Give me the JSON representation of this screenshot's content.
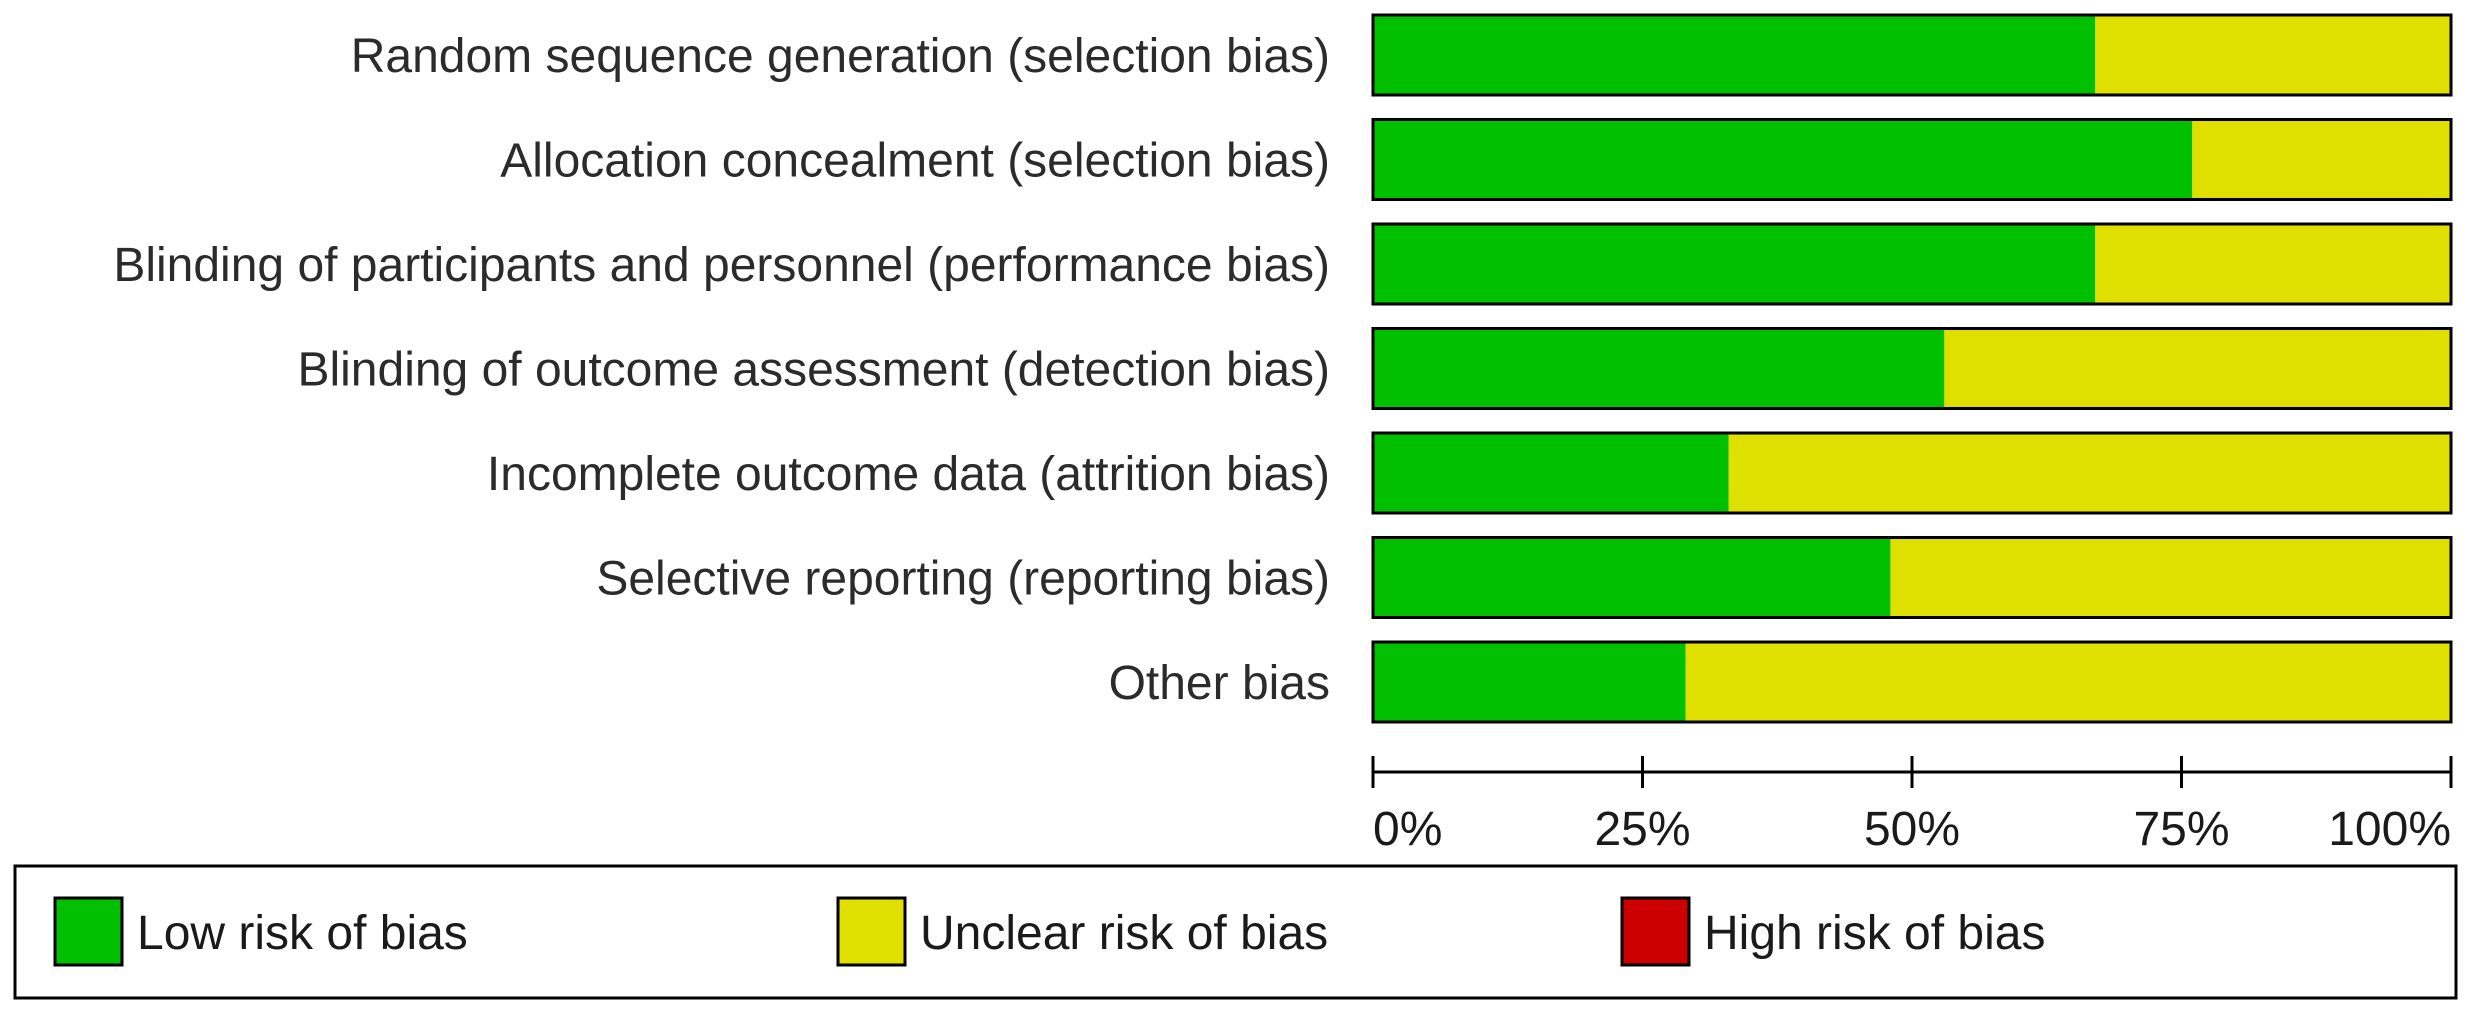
{
  "chart_data": {
    "type": "bar",
    "stacked": true,
    "orientation": "horizontal",
    "categories": [
      "Random sequence generation (selection bias)",
      "Allocation concealment (selection bias)",
      "Blinding of participants and personnel (performance bias)",
      "Blinding of outcome assessment (detection bias)",
      "Incomplete outcome data (attrition bias)",
      "Selective reporting (reporting bias)",
      "Other bias"
    ],
    "series": [
      {
        "name": "Low risk of bias",
        "color": "#00c000",
        "values": [
          67,
          76,
          67,
          53,
          33,
          48,
          29
        ]
      },
      {
        "name": "Unclear risk of bias",
        "color": "#e0e000",
        "values": [
          33,
          24,
          33,
          47,
          67,
          52,
          71
        ]
      },
      {
        "name": "High risk of bias",
        "color": "#cc0000",
        "values": [
          0,
          0,
          0,
          0,
          0,
          0,
          0
        ]
      }
    ],
    "xlim": [
      0,
      100
    ],
    "xticks": [
      "0%",
      "25%",
      "50%",
      "75%",
      "100%"
    ],
    "title": "",
    "xlabel": "",
    "ylabel": "",
    "legend_position": "bottom"
  }
}
